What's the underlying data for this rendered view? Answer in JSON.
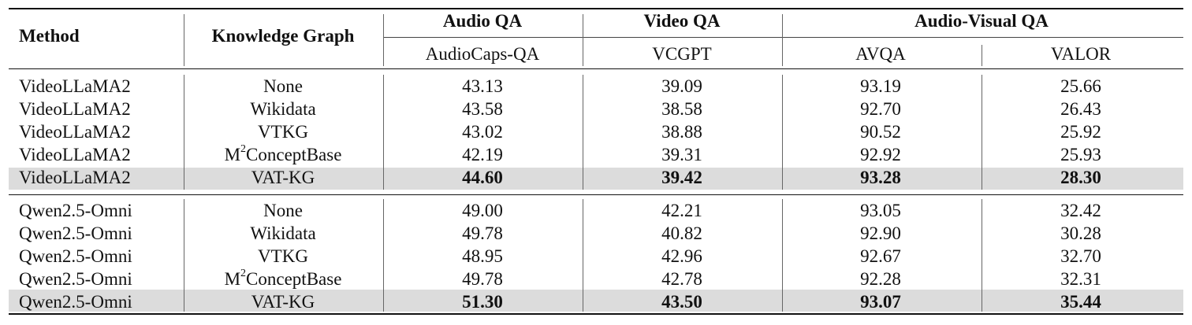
{
  "table": {
    "headers": {
      "method": "Method",
      "knowledge_graph": "Knowledge Graph",
      "group_audio": "Audio QA",
      "group_video": "Video QA",
      "group_av": "Audio-Visual QA",
      "sub_audiocaps": "AudioCaps-QA",
      "sub_vcgpt": "VCGPT",
      "sub_avqa": "AVQA",
      "sub_valor": "VALOR"
    },
    "block1": [
      {
        "method": "VideoLLaMA2",
        "kg": "None",
        "kg_sup": "",
        "kg_rest": "",
        "v": [
          "43.13",
          "39.09",
          "93.19",
          "25.66"
        ],
        "bold": false
      },
      {
        "method": "VideoLLaMA2",
        "kg": "Wikidata",
        "kg_sup": "",
        "kg_rest": "",
        "v": [
          "43.58",
          "38.58",
          "92.70",
          "26.43"
        ],
        "bold": false
      },
      {
        "method": "VideoLLaMA2",
        "kg": "VTKG",
        "kg_sup": "",
        "kg_rest": "",
        "v": [
          "43.02",
          "38.88",
          "90.52",
          "25.92"
        ],
        "bold": false
      },
      {
        "method": "VideoLLaMA2",
        "kg": "M",
        "kg_sup": "2",
        "kg_rest": "ConceptBase",
        "v": [
          "42.19",
          "39.31",
          "92.92",
          "25.93"
        ],
        "bold": false
      },
      {
        "method": "VideoLLaMA2",
        "kg": "VAT-KG",
        "kg_sup": "",
        "kg_rest": "",
        "v": [
          "44.60",
          "39.42",
          "93.28",
          "28.30"
        ],
        "bold": true
      }
    ],
    "block2": [
      {
        "method": "Qwen2.5-Omni",
        "kg": "None",
        "kg_sup": "",
        "kg_rest": "",
        "v": [
          "49.00",
          "42.21",
          "93.05",
          "32.42"
        ],
        "bold": false
      },
      {
        "method": "Qwen2.5-Omni",
        "kg": "Wikidata",
        "kg_sup": "",
        "kg_rest": "",
        "v": [
          "49.78",
          "40.82",
          "92.90",
          "30.28"
        ],
        "bold": false
      },
      {
        "method": "Qwen2.5-Omni",
        "kg": "VTKG",
        "kg_sup": "",
        "kg_rest": "",
        "v": [
          "48.95",
          "42.96",
          "92.67",
          "32.70"
        ],
        "bold": false
      },
      {
        "method": "Qwen2.5-Omni",
        "kg": "M",
        "kg_sup": "2",
        "kg_rest": "ConceptBase",
        "v": [
          "49.78",
          "42.78",
          "92.28",
          "32.31"
        ],
        "bold": false
      },
      {
        "method": "Qwen2.5-Omni",
        "kg": "VAT-KG",
        "kg_sup": "",
        "kg_rest": "",
        "v": [
          "51.30",
          "43.50",
          "93.07",
          "35.44"
        ],
        "bold": true
      }
    ]
  }
}
